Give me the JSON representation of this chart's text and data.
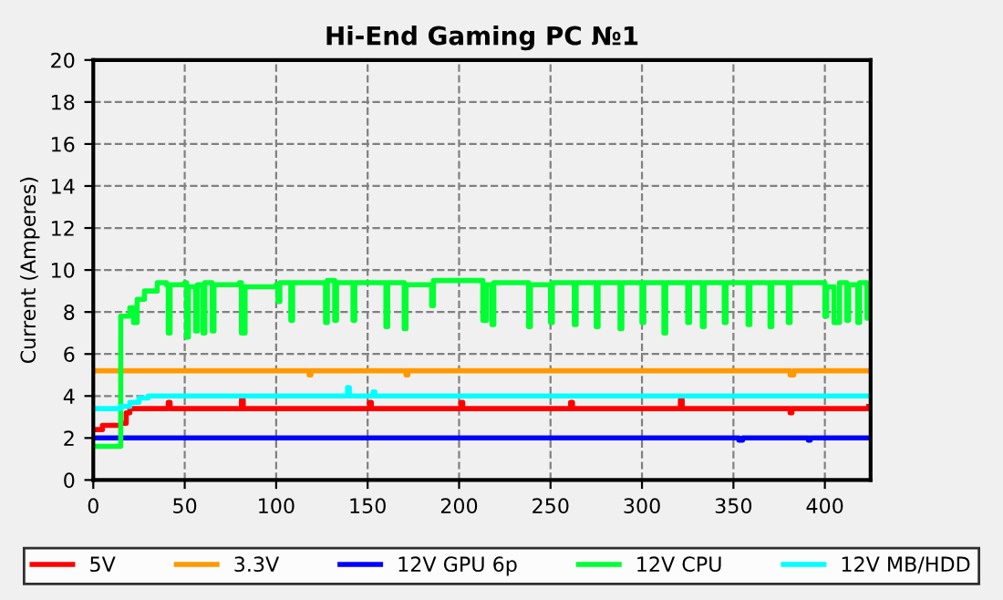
{
  "chart_data": {
    "type": "step",
    "title": "Hi-End Gaming PC №1",
    "ylabel": "Current (Amperes)",
    "xlim": [
      0,
      425
    ],
    "xticks": [
      0,
      50,
      100,
      150,
      200,
      250,
      300,
      350,
      400
    ],
    "ylim": [
      0,
      20
    ],
    "yticks": [
      0,
      2,
      4,
      6,
      8,
      10,
      12,
      14,
      16,
      18,
      20
    ],
    "grid": true,
    "legend": "bottom",
    "line_style": "solid",
    "series": [
      {
        "name": "5V",
        "color": "#ff0000",
        "x": [
          0,
          5,
          15,
          18,
          20,
          40,
          41,
          42,
          80,
          81,
          82,
          150,
          151,
          152,
          200,
          201,
          202,
          260,
          261,
          262,
          320,
          321,
          322,
          380,
          381,
          382,
          424
        ],
        "values": [
          2.4,
          2.6,
          2.7,
          3.2,
          3.4,
          3.4,
          3.7,
          3.4,
          3.4,
          3.8,
          3.4,
          3.4,
          3.7,
          3.4,
          3.4,
          3.7,
          3.4,
          3.4,
          3.7,
          3.4,
          3.4,
          3.8,
          3.4,
          3.4,
          3.2,
          3.4,
          3.5
        ]
      },
      {
        "name": "3.3V",
        "color": "#ff9900",
        "x": [
          0,
          117,
          118,
          119,
          170,
          171,
          172,
          380,
          381,
          383,
          424
        ],
        "values": [
          5.2,
          5.2,
          5.0,
          5.2,
          5.2,
          5.0,
          5.2,
          5.2,
          5.0,
          5.2,
          5.2
        ]
      },
      {
        "name": "12V GPU 6p",
        "color": "#0000ff",
        "x": [
          0,
          352,
          353,
          355,
          390,
          391,
          392,
          424
        ],
        "values": [
          2.0,
          2.0,
          1.9,
          2.0,
          2.0,
          1.9,
          2.0,
          2.0
        ]
      },
      {
        "name": "12V CPU",
        "color": "#00ff33",
        "x": [
          0,
          14,
          15,
          20,
          22,
          24,
          28,
          35,
          40,
          41,
          42,
          50,
          51,
          52,
          56,
          57,
          60,
          61,
          65,
          66,
          80,
          81,
          83,
          100,
          101,
          102,
          108,
          109,
          127,
          128,
          132,
          133,
          142,
          143,
          160,
          161,
          170,
          171,
          185,
          186,
          213,
          215,
          218,
          219,
          238,
          239,
          250,
          251,
          263,
          264,
          275,
          276,
          288,
          289,
          300,
          301,
          312,
          313,
          325,
          326,
          333,
          334,
          345,
          346,
          358,
          359,
          370,
          371,
          380,
          381,
          400,
          401,
          405,
          408,
          412,
          413,
          418,
          419,
          423,
          424
        ],
        "values": [
          1.6,
          1.6,
          7.8,
          8.2,
          7.5,
          8.6,
          9.0,
          9.4,
          9.3,
          7.0,
          9.3,
          9.4,
          6.8,
          9.2,
          7.1,
          9.3,
          7.0,
          9.4,
          7.1,
          9.3,
          9.4,
          7.0,
          9.2,
          9.3,
          8.5,
          9.4,
          7.6,
          9.4,
          7.5,
          9.5,
          7.6,
          9.4,
          7.6,
          9.4,
          7.3,
          9.4,
          7.2,
          9.3,
          8.3,
          9.5,
          7.6,
          9.3,
          7.4,
          9.4,
          7.3,
          9.3,
          7.5,
          9.4,
          7.4,
          9.4,
          7.3,
          9.4,
          7.2,
          9.4,
          7.5,
          9.4,
          7.0,
          9.4,
          7.5,
          9.4,
          7.3,
          9.4,
          7.5,
          9.4,
          7.4,
          9.4,
          7.3,
          9.4,
          7.5,
          9.4,
          7.8,
          9.2,
          7.5,
          9.4,
          7.6,
          9.3,
          7.5,
          9.4,
          7.7,
          7.8
        ]
      },
      {
        "name": "12V MB/HDD",
        "color": "#00ffff",
        "x": [
          0,
          15,
          20,
          25,
          30,
          138,
          139,
          140,
          152,
          153,
          154,
          424
        ],
        "values": [
          3.4,
          3.5,
          3.7,
          3.9,
          4.0,
          4.0,
          4.4,
          4.0,
          4.0,
          4.2,
          4.0,
          4.0
        ]
      }
    ]
  }
}
